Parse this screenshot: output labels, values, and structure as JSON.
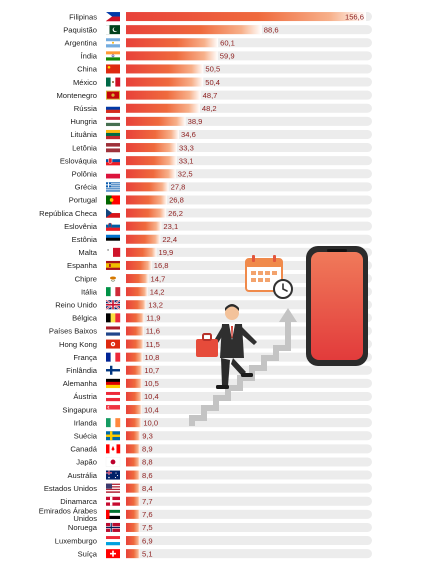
{
  "chart_data": {
    "type": "bar",
    "orientation": "horizontal",
    "categories": [
      "Filipinas",
      "Paquistão",
      "Argentina",
      "Índia",
      "China",
      "México",
      "Montenegro",
      "Rússia",
      "Hungria",
      "Lituânia",
      "Letônia",
      "Eslováquia",
      "Polônia",
      "Grécia",
      "Portugal",
      "República Checa",
      "Eslovênia",
      "Estônia",
      "Malta",
      "Espanha",
      "Chipre",
      "Itália",
      "Reino Unido",
      "Bélgica",
      "Países Baixos",
      "Hong Kong",
      "França",
      "Finlândia",
      "Alemanha",
      "Áustria",
      "Singapura",
      "Irlanda",
      "Suécia",
      "Canadá",
      "Japão",
      "Austrália",
      "Estados Unidos",
      "Dinamarca",
      "Emirados Árabes Unidos",
      "Noruega",
      "Luxemburgo",
      "Suíça"
    ],
    "values": [
      156.6,
      88.6,
      60.1,
      59.9,
      50.5,
      50.4,
      48.7,
      48.2,
      38.9,
      34.6,
      33.3,
      33.1,
      32.5,
      27.8,
      26.8,
      26.2,
      23.1,
      22.4,
      19.9,
      16.8,
      14.7,
      14.2,
      13.2,
      11.9,
      11.6,
      11.5,
      10.8,
      10.7,
      10.5,
      10.4,
      10.4,
      10.0,
      9.3,
      8.9,
      8.8,
      8.6,
      8.4,
      7.7,
      7.6,
      7.5,
      6.9,
      5.1
    ],
    "value_labels": [
      "156,6",
      "88,6",
      "60,1",
      "59,9",
      "50,5",
      "50,4",
      "48,7",
      "48,2",
      "38,9",
      "34,6",
      "33,3",
      "33,1",
      "32,5",
      "27,8",
      "26,8",
      "26,2",
      "23,1",
      "22,4",
      "19,9",
      "16,8",
      "14,7",
      "14,2",
      "13,2",
      "11,9",
      "11,6",
      "11,5",
      "10,8",
      "10,7",
      "10,5",
      "10,4",
      "10,4",
      "10,0",
      "9,3",
      "8,9",
      "8,8",
      "8,6",
      "8,4",
      "7,7",
      "7,6",
      "7,5",
      "6,9",
      "5,1"
    ],
    "flags": [
      "philippines",
      "pakistan",
      "argentina",
      "india",
      "china",
      "mexico",
      "montenegro",
      "russia",
      "hungary",
      "lithuania",
      "latvia",
      "slovakia",
      "poland",
      "greece",
      "portugal",
      "czech-republic",
      "slovenia",
      "estonia",
      "malta",
      "spain",
      "cyprus",
      "italy",
      "united-kingdom",
      "belgium",
      "netherlands",
      "hong-kong",
      "france",
      "finland",
      "germany",
      "austria",
      "singapore",
      "ireland",
      "sweden",
      "canada",
      "japan",
      "australia",
      "united-states",
      "denmark",
      "united-arab-emirates",
      "norway",
      "luxembourg",
      "switzerland"
    ],
    "title": "",
    "xlabel": "",
    "ylabel": "",
    "xlim": [
      0,
      156.6
    ],
    "grid": false,
    "colors": {
      "bar_strong": "#e8413a",
      "bar_fade": "#ffffff",
      "track": "#ececec",
      "value_text": "#8c1d1d"
    }
  }
}
